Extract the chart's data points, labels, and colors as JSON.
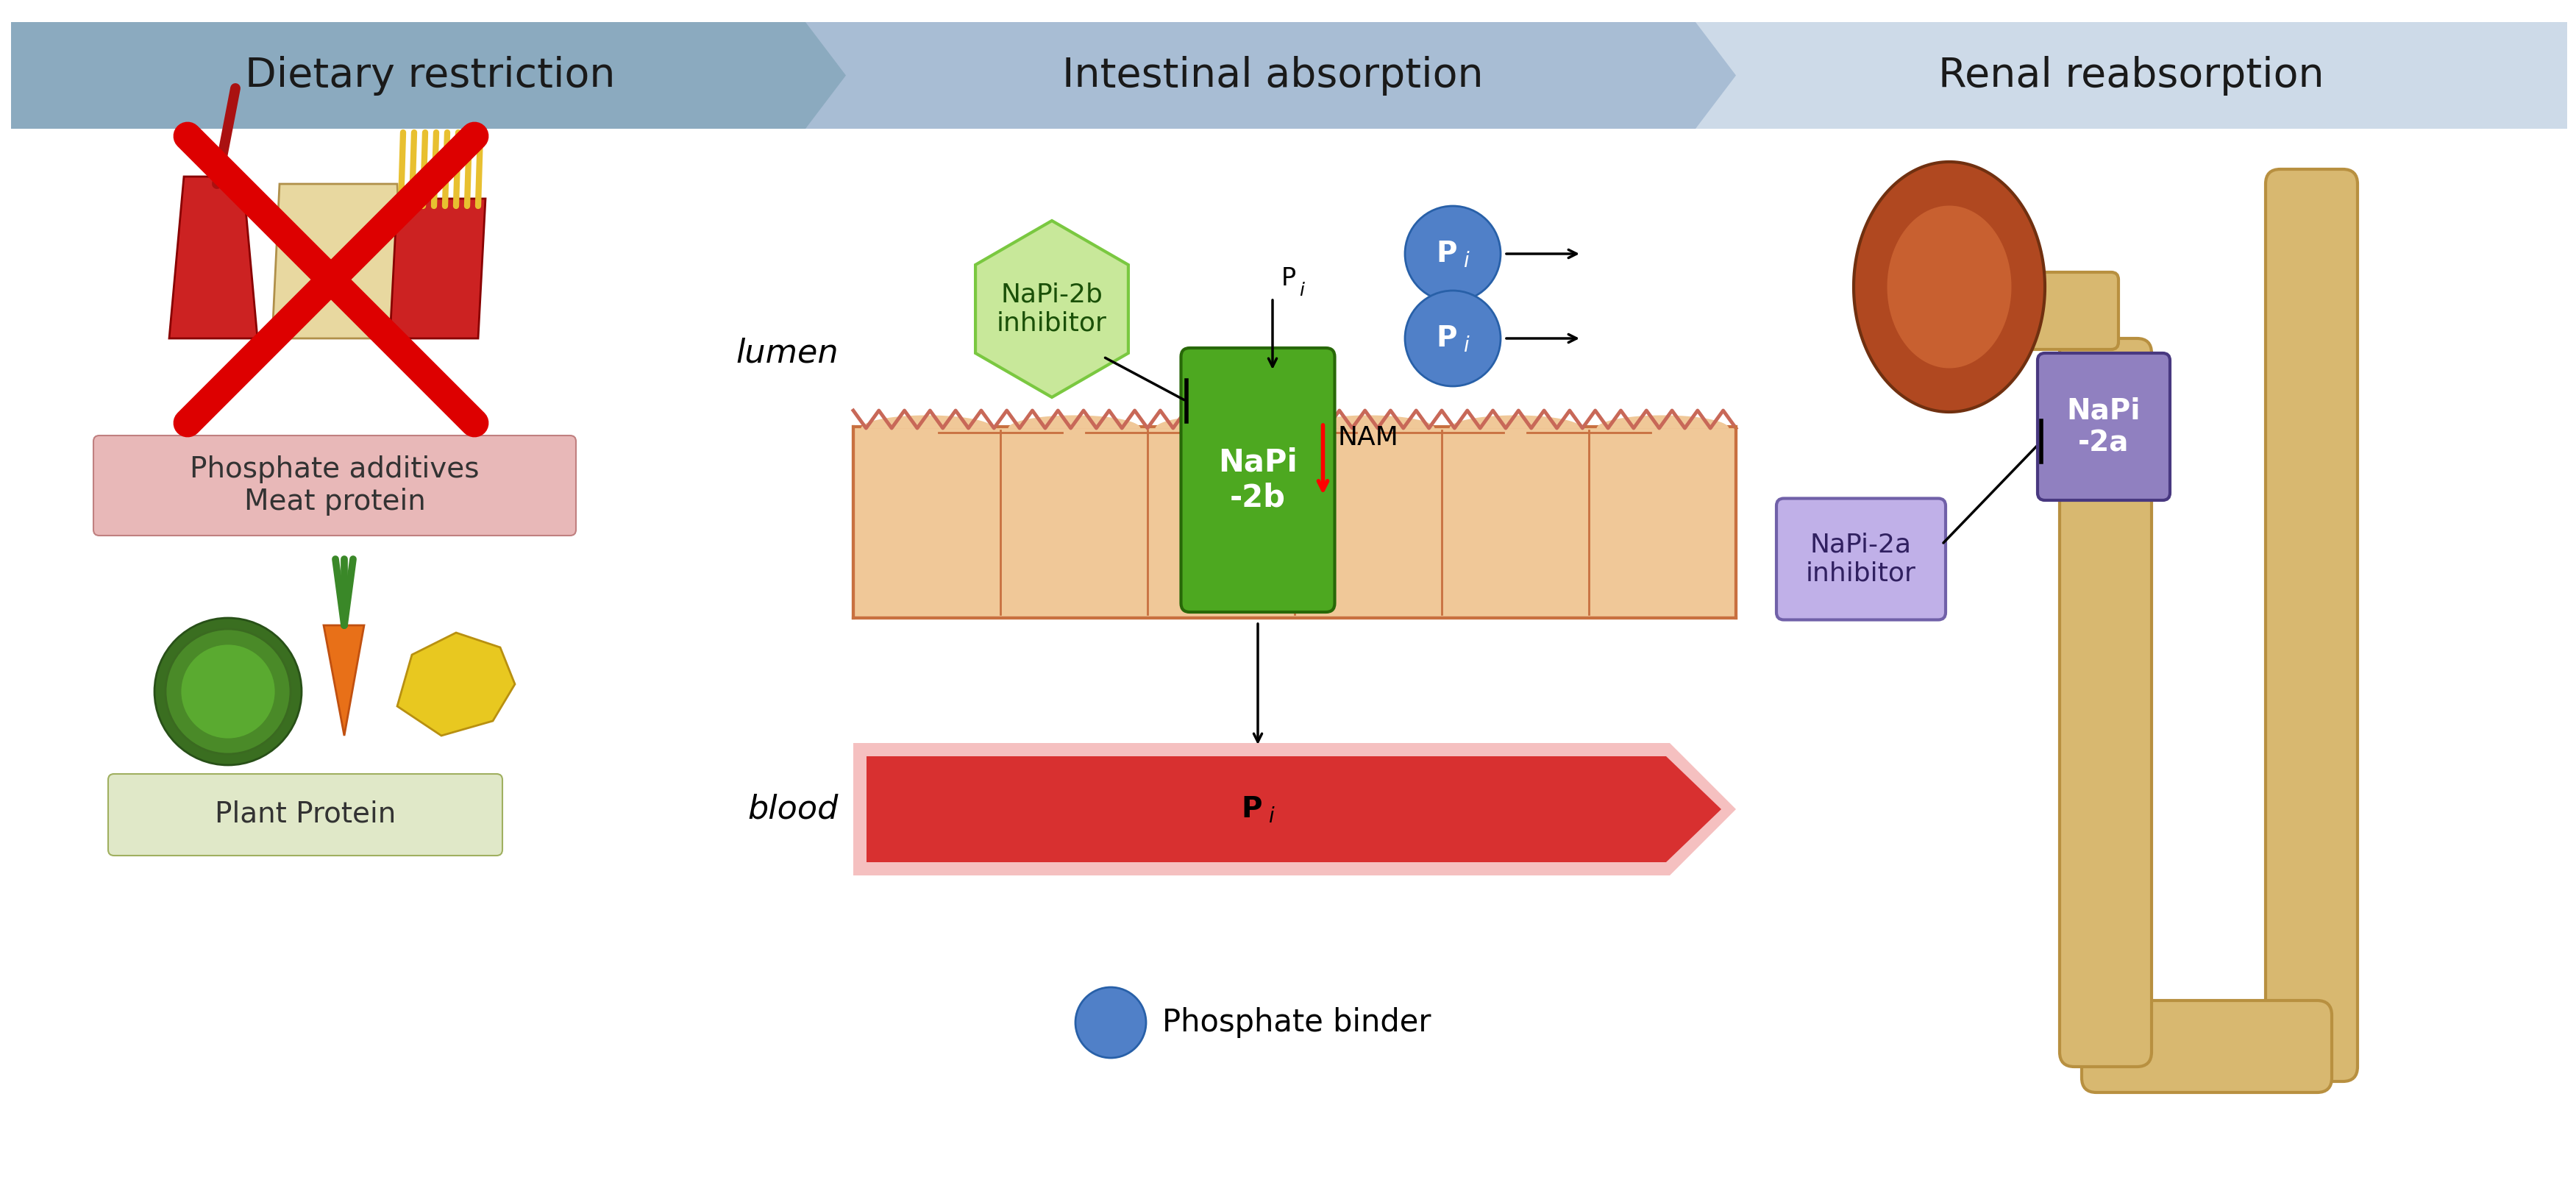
{
  "banner1_text": "Dietary restriction",
  "banner2_text": "Intestinal absorption",
  "banner3_text": "Renal reabsorption",
  "banner1_color": "#8baabf",
  "banner2_color": "#a8bdd4",
  "banner3_color": "#cddae8",
  "bg_color": "#ffffff",
  "phosphate_additives_label": "Phosphate additives\nMeat protein",
  "plant_protein_label": "Plant Protein",
  "lumen_label": "lumen",
  "blood_label": "blood",
  "napi2b_inhibitor_label": "NaPi-2b\ninhibitor",
  "napi2b_label": "NaPi\n-2b",
  "nam_label": "NAM",
  "phosphate_binder_label": "Phosphate binder",
  "napi2a_label": "NaPi\n-2a",
  "napi2a_inhibitor_label": "NaPi-2a\ninhibitor",
  "napi2b_color": "#4da820",
  "napi2b_inhibitor_color": "#c8e89a",
  "napi2b_inhibitor_border": "#7ac840",
  "napi2a_color": "#9080c0",
  "napi2a_inhibitor_color": "#c0b0e8",
  "napi2a_inhibitor_border": "#7060a8",
  "phosphate_binder_color": "#5080c8",
  "pi_circle_color": "#5080c8",
  "cell_color": "#f0c898",
  "cell_border_color": "#c87040",
  "blood_vessel_color": "#d83030",
  "blood_vessel_inner": "#f09090",
  "villus_color": "#c86858",
  "phosphate_additives_box_color": "#e8b8b8",
  "plant_protein_box_color": "#e0e8c8",
  "tube_color": "#d8b870",
  "tube_edge": "#b89040",
  "kidney_color": "#b04820",
  "kidney_inner_color": "#c86030"
}
